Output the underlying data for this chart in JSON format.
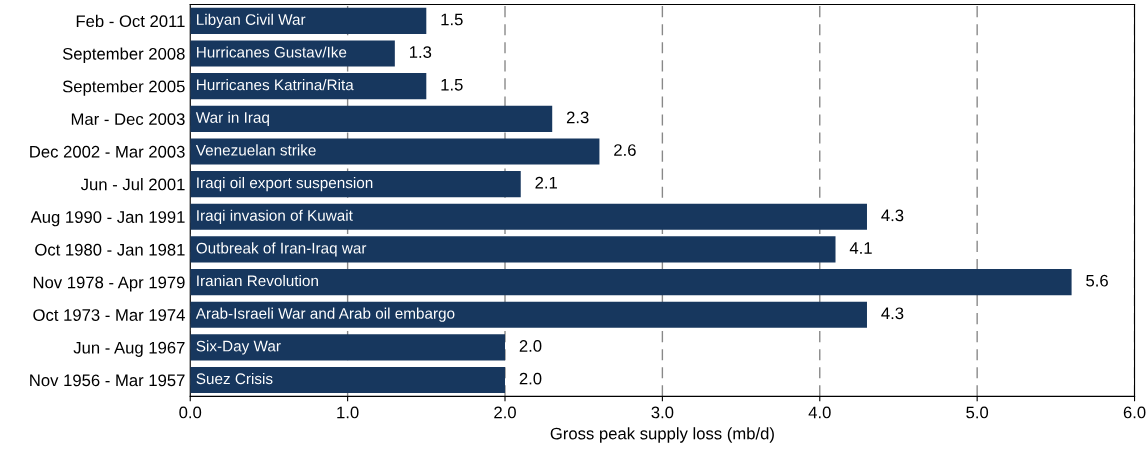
{
  "chart_data": {
    "type": "bar",
    "orientation": "horizontal",
    "xlabel": "Gross peak supply loss (mb/d)",
    "categories": [
      "Feb - Oct 2011",
      "September 2008",
      "September 2005",
      "Mar - Dec 2003",
      "Dec 2002 - Mar 2003",
      "Jun - Jul 2001",
      "Aug 1990 - Jan 1991",
      "Oct 1980 - Jan 1981",
      "Nov 1978 - Apr 1979",
      "Oct 1973 - Mar 1974",
      "Jun - Aug 1967",
      "Nov 1956 - Mar 1957"
    ],
    "values": [
      1.5,
      1.3,
      1.5,
      2.3,
      2.6,
      2.1,
      4.3,
      4.1,
      5.6,
      4.3,
      2.0,
      2.0
    ],
    "value_labels": [
      "1.5",
      "1.3",
      "1.5",
      "2.3",
      "2.6",
      "2.1",
      "4.3",
      "4.1",
      "5.6",
      "4.3",
      "2.0",
      "2.0"
    ],
    "color": "#17375e",
    "xlim": [
      0,
      6
    ],
    "xticks": [
      {
        "value": 0,
        "label": "0.0"
      },
      {
        "value": 1,
        "label": "1.0"
      },
      {
        "value": 2,
        "label": "2.0"
      },
      {
        "value": 3,
        "label": "3.0"
      },
      {
        "value": 4,
        "label": "4.0"
      },
      {
        "value": 5,
        "label": "5.0"
      },
      {
        "value": 6,
        "label": "6.0"
      }
    ],
    "grid": "x",
    "annotations": [
      {
        "text": "Libyan Civil War",
        "y": "Feb - Oct 2011"
      },
      {
        "text": "Hurricanes Gustav/Ike",
        "y": "September 2008"
      },
      {
        "text": "Hurricanes Katrina/Rita",
        "y": "September 2005"
      },
      {
        "text": "War in Iraq",
        "y": "Mar - Dec 2003"
      },
      {
        "text": "Venezuelan strike",
        "y": "Dec 2002 - Mar 2003"
      },
      {
        "text": "Iraqi oil export suspension",
        "y": "Jun - Jul 2001"
      },
      {
        "text": "Iraqi invasion of Kuwait",
        "y": "Aug 1990 - Jan 1991"
      },
      {
        "text": "Outbreak of Iran-Iraq war",
        "y": "Oct 1980 - Jan 1981"
      },
      {
        "text": "Iranian Revolution",
        "y": "Nov 1978 - Apr 1979"
      },
      {
        "text": "Arab-Israeli War and Arab oil embargo",
        "y": "Oct 1973 - Mar 1974"
      },
      {
        "text": "Six-Day War",
        "y": "Jun - Aug 1967"
      },
      {
        "text": "Suez Crisis",
        "y": "Nov 1956 - Mar 1957"
      }
    ]
  }
}
